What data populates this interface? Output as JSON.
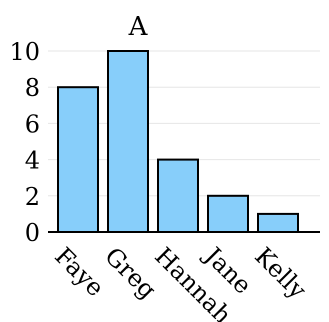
{
  "chart_data": {
    "type": "bar",
    "title": "A",
    "categories": [
      "Faye",
      "Greg",
      "Hannah",
      "Jane",
      "Kelly"
    ],
    "values": [
      8,
      10,
      4,
      2,
      1
    ],
    "xlabel": "",
    "ylabel": "",
    "ylim": [
      0,
      10
    ],
    "yticks": [
      0,
      2,
      4,
      6,
      8,
      10
    ],
    "grid": "horizontal",
    "legend": "none",
    "bar_color": "#87cefa",
    "bar_edge_color": "#000000"
  }
}
